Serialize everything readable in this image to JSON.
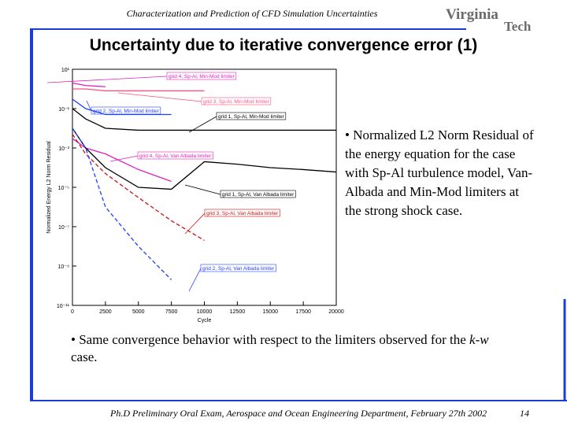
{
  "header": {
    "text": "Characterization and Prediction of CFD Simulation Uncertainties",
    "logo_top": "Virginia",
    "logo_bottom": "Tech"
  },
  "title": "Uncertainty due to iterative convergence error (1)",
  "bullets": {
    "first": "• Normalized L2 Norm Residual of the energy equation for the case with Sp-Al turbulence model, Van-Albada and Min-Mod limiters at the strong shock case.",
    "second": [
      "• Same convergence behavior with respect to the limiters observed for the ",
      "k-w",
      " case."
    ]
  },
  "footer": {
    "text": "Ph.D Preliminary Oral Exam, Aerospace and Ocean Engineering Department, February 27th 2002",
    "page": "14"
  },
  "chart_data": {
    "type": "line",
    "x_label": "Cycle",
    "y_label": "Normalized Energy L2 Norm Residual",
    "log_y": true,
    "x": [
      0,
      1000,
      2500,
      5000,
      7500,
      10000,
      12500,
      15000,
      17500,
      20000
    ],
    "xlim": [
      0,
      20000
    ],
    "xticks": [
      0,
      2500,
      5000,
      7500,
      10000,
      12500,
      15000,
      17500,
      20000
    ],
    "ylim": [
      1e-11,
      10
    ],
    "yticks": [
      {
        "value": 10,
        "label": "10¹"
      },
      {
        "value": 0.1,
        "label": "10⁻¹"
      },
      {
        "value": 0.001,
        "label": "10⁻³"
      },
      {
        "value": 1e-05,
        "label": "10⁻⁵"
      },
      {
        "value": 1e-07,
        "label": "10⁻⁷"
      },
      {
        "value": 1e-09,
        "label": "10⁻⁹"
      },
      {
        "value": 1e-11,
        "label": "10⁻¹¹"
      }
    ],
    "series": [
      {
        "name": "grid 4, Sp-Al, Min-Mod limiter",
        "color": "#e020c0",
        "dash": false,
        "values": [
          2,
          1.5,
          1.3,
          null,
          null,
          null,
          null,
          null,
          null,
          null
        ]
      },
      {
        "name": "grid 3, Sp-Al, Min-Mod limiter",
        "color": "#ff5080",
        "dash": false,
        "values": [
          1,
          1,
          0.8,
          0.8,
          0.8,
          0.8,
          null,
          null,
          null,
          null
        ]
      },
      {
        "name": "grid 2, Sp-Al, Min-Mod limiter",
        "color": "#2040ff",
        "dash": false,
        "values": [
          0.3,
          0.1,
          0.05,
          0.05,
          0.05,
          null,
          null,
          null,
          null,
          null
        ]
      },
      {
        "name": "grid 1, Sp-Al, Min-Mod limiter",
        "color": "#000000",
        "dash": false,
        "values": [
          0.1,
          0.03,
          0.01,
          0.008,
          0.008,
          0.008,
          0.008,
          0.008,
          0.008,
          0.008
        ]
      },
      {
        "name": "grid 4, Sp-Al, Van Albada limiter",
        "color": "#e020c0",
        "dash": false,
        "values": [
          0.003,
          0.001,
          0.0005,
          8e-05,
          2e-05,
          null,
          null,
          null,
          null,
          null
        ]
      },
      {
        "name": "grid 1, Sp-Al, Van Albada limiter",
        "color": "#000000",
        "dash": false,
        "values": [
          0.01,
          0.001,
          0.0001,
          1e-05,
          8e-06,
          0.0002,
          0.00015,
          0.0001,
          8e-05,
          6e-05
        ]
      },
      {
        "name": "grid 3, Sp-Al, Van Albada limiter",
        "color": "#d01010",
        "dash": true,
        "values": [
          0.005,
          0.0005,
          5e-05,
          3e-06,
          2e-07,
          2e-08,
          null,
          null,
          null,
          null
        ]
      },
      {
        "name": "grid 2, Sp-Al, Van Albada limiter",
        "color": "#2040ff",
        "dash": true,
        "values": [
          0.01,
          0.001,
          1e-06,
          1e-08,
          2e-10,
          null,
          null,
          null,
          null,
          null
        ]
      }
    ]
  }
}
